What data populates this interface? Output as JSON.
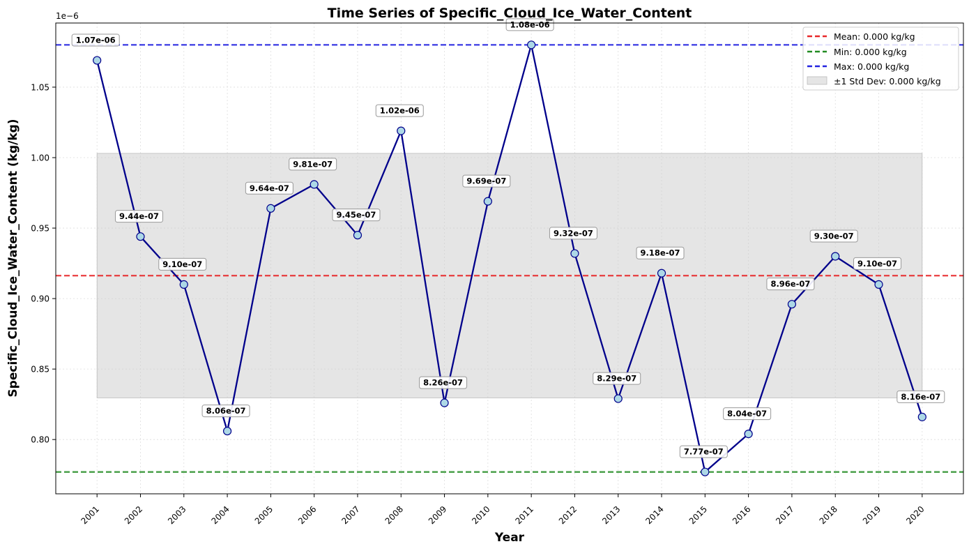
{
  "chart_data": {
    "type": "line",
    "title": "Time Series of Specific_Cloud_Ice_Water_Content",
    "xlabel": "Year",
    "ylabel": "Specific_Cloud_Ice_Water_Content (kg/kg)",
    "y_offset_label": "1e−6",
    "x": [
      2001,
      2002,
      2003,
      2004,
      2005,
      2006,
      2007,
      2008,
      2009,
      2010,
      2011,
      2012,
      2013,
      2014,
      2015,
      2016,
      2017,
      2018,
      2019,
      2020
    ],
    "x_tick_labels": [
      "2001",
      "2002",
      "2003",
      "2004",
      "2005",
      "2006",
      "2007",
      "2008",
      "2009",
      "2010",
      "2011",
      "2012",
      "2013",
      "2014",
      "2015",
      "2016",
      "2017",
      "2018",
      "2019",
      "2020"
    ],
    "values": [
      1.069e-06,
      9.44e-07,
      9.1e-07,
      8.06e-07,
      9.64e-07,
      9.81e-07,
      9.45e-07,
      1.019e-06,
      8.26e-07,
      9.69e-07,
      1.08e-06,
      9.32e-07,
      8.29e-07,
      9.18e-07,
      7.77e-07,
      8.04e-07,
      8.96e-07,
      9.3e-07,
      9.1e-07,
      8.16e-07
    ],
    "data_labels": [
      "1.07e-06",
      "9.44e-07",
      "9.10e-07",
      "8.06e-07",
      "9.64e-07",
      "9.81e-07",
      "9.45e-07",
      "1.02e-06",
      "8.26e-07",
      "9.69e-07",
      "1.08e-06",
      "9.32e-07",
      "8.29e-07",
      "9.18e-07",
      "7.77e-07",
      "8.04e-07",
      "8.96e-07",
      "9.30e-07",
      "9.10e-07",
      "8.16e-07"
    ],
    "y_ticks": [
      0.8,
      0.85,
      0.9,
      0.95,
      1.0,
      1.05
    ],
    "y_tick_labels": [
      "0.80",
      "0.85",
      "0.90",
      "0.95",
      "1.00",
      "1.05"
    ],
    "ylim": [
      0.7615,
      1.0955
    ],
    "xlim": [
      2000.05,
      2020.95
    ],
    "mean": 0.9163,
    "min": 0.777,
    "max": 1.08,
    "std_band": [
      0.8296,
      1.003
    ],
    "grid": true,
    "legend_position": "top-right",
    "legend": {
      "mean": "Mean: 0.000 kg/kg",
      "min": "Min: 0.000 kg/kg",
      "max": "Max: 0.000 kg/kg",
      "std": "±1 Std Dev: 0.000 kg/kg"
    },
    "colors": {
      "line": "#00008b",
      "marker_fill": "#add8e6",
      "mean": "#e8282a",
      "min": "#228b22",
      "max": "#2222e0",
      "band": "#cccccc"
    }
  }
}
